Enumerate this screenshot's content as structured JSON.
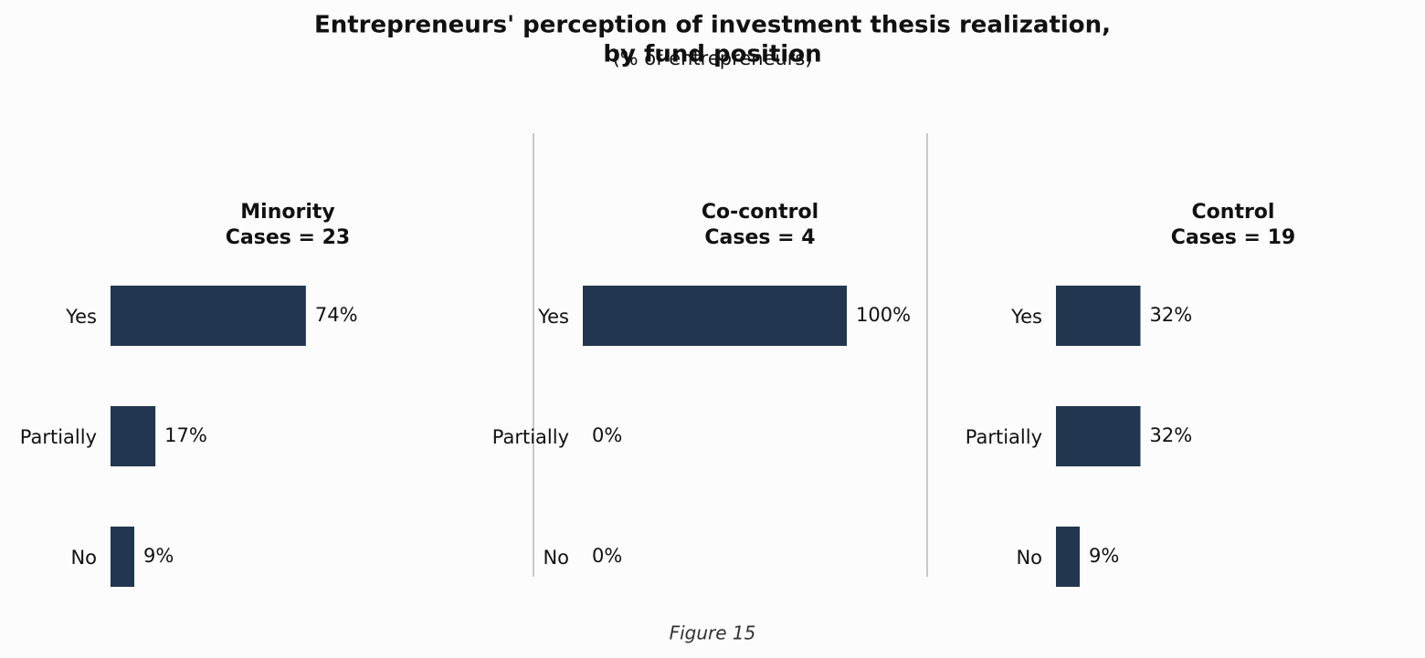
{
  "figure": {
    "title_lines": [
      "Entrepreneurs' perception of investment thesis realization,",
      "by fund position"
    ],
    "subtitle": "(% of entrepreneurs)",
    "caption": "Figure 15"
  },
  "chart_data": [
    {
      "type": "bar",
      "orientation": "horizontal",
      "title": "Minority",
      "subtitle": "Cases = 23",
      "categories": [
        "Yes",
        "Partially",
        "No"
      ],
      "values": [
        74,
        17,
        9
      ],
      "value_labels": [
        "74%",
        "17%",
        "9%"
      ],
      "color": "#22364f",
      "xlim": [
        0,
        100
      ]
    },
    {
      "type": "bar",
      "orientation": "horizontal",
      "title": "Co-control",
      "subtitle": "Cases = 4",
      "categories": [
        "Yes",
        "Partially",
        "No"
      ],
      "values": [
        100,
        0,
        0
      ],
      "value_labels": [
        "100%",
        "0%",
        "0%"
      ],
      "color": "#22364f",
      "xlim": [
        0,
        100
      ]
    },
    {
      "type": "bar",
      "orientation": "horizontal",
      "title": "Control",
      "subtitle": "Cases = 19",
      "categories": [
        "Yes",
        "Partially",
        "No"
      ],
      "values": [
        32,
        32,
        9
      ],
      "value_labels": [
        "32%",
        "32%",
        "9%"
      ],
      "color": "#22364f",
      "xlim": [
        0,
        100
      ]
    }
  ]
}
